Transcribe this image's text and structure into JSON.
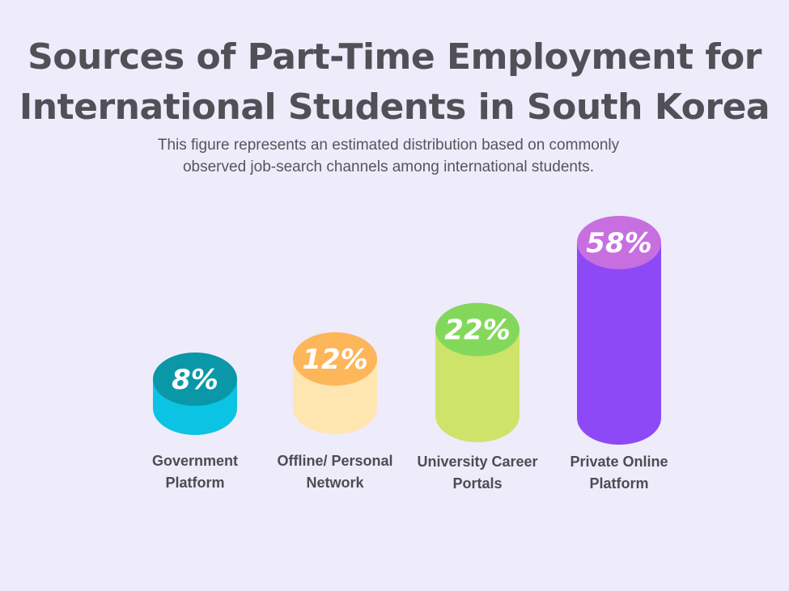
{
  "page": {
    "title_line1": "Sources of Part-Time Employment for",
    "title_line2": "International Students in South Korea",
    "subtitle_line1": "This figure represents an estimated distribution based on commonly",
    "subtitle_line2": "observed job-search channels among international students."
  },
  "colors": {
    "background": "#EEEBFB",
    "bars": [
      {
        "body": "#0BC3E2",
        "top": "#0A97A8"
      },
      {
        "body": "#FFE5AF",
        "top": "#FDB65A"
      },
      {
        "body": "#CDE36A",
        "top": "#83D85B"
      },
      {
        "body": "#8E49F7",
        "top": "#C86FE0"
      }
    ]
  },
  "chart_data": {
    "type": "bar",
    "categories": [
      [
        "Government",
        "Platform"
      ],
      [
        "Offline/ Personal",
        "Network"
      ],
      [
        "University Career",
        "Portals"
      ],
      [
        "Private Online",
        "Platform"
      ]
    ],
    "values": [
      8,
      12,
      22,
      58
    ],
    "value_labels": [
      "8%",
      "12%",
      "22%",
      "58%"
    ],
    "unit": "%",
    "title": "Sources of Part-Time Employment for International Students in South Korea",
    "style": "3D cylinders",
    "grid": false,
    "legend": "none"
  }
}
